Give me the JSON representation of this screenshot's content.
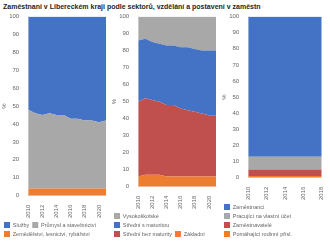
{
  "title": "Zaměstnani v Libereckém kraji podle sektorů, vzdělání a postavení v zaměstn",
  "chart_data": [
    {
      "type": "area",
      "stacked": true,
      "grid": false,
      "legend": "bottom",
      "x": [
        2010,
        2011,
        2012,
        2013,
        2014,
        2015,
        2016,
        2017,
        2018,
        2019,
        2020,
        2021
      ],
      "xlim": [
        2010,
        2021
      ],
      "xticks": [
        2010,
        2012,
        2014,
        2016,
        2018,
        2020
      ],
      "y_label": "%",
      "ylim": [
        0,
        100
      ],
      "yticks": [
        0,
        10,
        20,
        30,
        40,
        50,
        60,
        70,
        80,
        90,
        100
      ],
      "series": [
        {
          "name": "Zemědělství, lesnictví, rybářství",
          "color": "#ED7D31",
          "values": [
            4,
            4,
            4,
            4,
            4,
            4,
            4,
            4,
            4,
            4,
            4,
            4
          ]
        },
        {
          "name": "Průmysl a stavebnictví",
          "color": "#A8A8A8",
          "values": [
            44,
            42,
            41,
            42,
            41,
            41,
            39,
            39,
            38,
            38,
            37,
            38
          ]
        },
        {
          "name": "Služby",
          "color": "#4472C4",
          "values": [
            52,
            54,
            55,
            54,
            55,
            55,
            57,
            57,
            58,
            58,
            59,
            58
          ]
        }
      ]
    },
    {
      "type": "area",
      "stacked": true,
      "grid": false,
      "legend": "bottom",
      "x": [
        2010,
        2011,
        2012,
        2013,
        2014,
        2015,
        2016,
        2017,
        2018,
        2019,
        2020,
        2021
      ],
      "xlim": [
        2010,
        2021
      ],
      "xticks": [
        2010,
        2012,
        2014,
        2016,
        2018,
        2020
      ],
      "y_label": "%",
      "ylim": [
        0,
        100
      ],
      "yticks": [
        0,
        10,
        20,
        30,
        40,
        50,
        60,
        70,
        80,
        90,
        100
      ],
      "series": [
        {
          "name": "Základní",
          "color": "#ED7D31",
          "values": [
            6,
            7,
            7,
            7,
            6,
            6,
            6,
            6,
            6,
            6,
            6,
            6
          ]
        },
        {
          "name": "Střední bez maturity",
          "color": "#C0504D",
          "values": [
            44,
            45,
            44,
            43,
            42,
            42,
            40,
            39,
            38,
            37,
            36,
            36
          ]
        },
        {
          "name": "Střední s maturitou",
          "color": "#4472C4",
          "values": [
            36,
            35,
            34,
            34,
            35,
            35,
            36,
            37,
            37,
            37,
            38,
            38
          ]
        },
        {
          "name": "Vysokoškolské",
          "color": "#A8A8A8",
          "values": [
            14,
            13,
            15,
            16,
            17,
            17,
            18,
            18,
            19,
            20,
            20,
            20
          ]
        }
      ]
    },
    {
      "type": "area",
      "stacked": true,
      "grid": false,
      "legend": "bottom",
      "x": [
        2010,
        2011,
        2012,
        2013,
        2014,
        2015,
        2016,
        2017,
        2018
      ],
      "xlim": [
        2010,
        2018
      ],
      "xticks": [
        2010,
        2012,
        2014,
        2016,
        2018
      ],
      "y_label": "%",
      "ylim": [
        0,
        100
      ],
      "yticks": [
        0,
        10,
        20,
        30,
        40,
        50,
        60,
        70,
        80,
        90,
        100
      ],
      "series": [
        {
          "name": "Pomáhající rodinní přísl.",
          "color": "#ED7D31",
          "values": [
            1,
            1,
            1,
            1,
            1,
            1,
            1,
            1,
            1
          ]
        },
        {
          "name": "Zaměstnavatelé",
          "color": "#C0504D",
          "values": [
            4,
            4,
            4,
            4,
            4,
            4,
            4,
            4,
            4
          ]
        },
        {
          "name": "Pracující na vlastní účet",
          "color": "#A8A8A8",
          "values": [
            8,
            8,
            8,
            8,
            8,
            8,
            8,
            8,
            8
          ]
        },
        {
          "name": "Zaměstnanci",
          "color": "#4472C4",
          "values": [
            87,
            87,
            87,
            87,
            87,
            87,
            87,
            87,
            87
          ]
        }
      ]
    }
  ]
}
